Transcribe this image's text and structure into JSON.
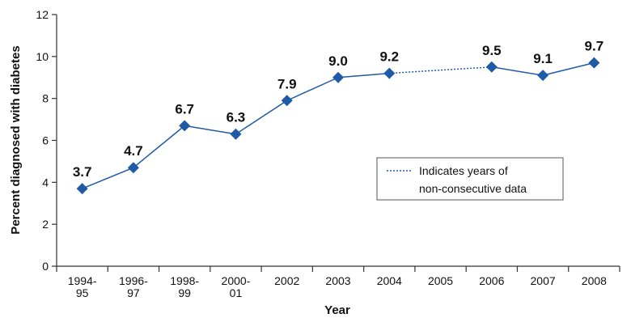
{
  "chart_data": {
    "type": "line",
    "categories": [
      [
        "1994-",
        "95"
      ],
      [
        "1996-",
        "97"
      ],
      [
        "1998-",
        "99"
      ],
      [
        "2000-",
        "01"
      ],
      [
        "2002"
      ],
      [
        "2003"
      ],
      [
        "2004"
      ],
      [
        "2005"
      ],
      [
        "2006"
      ],
      [
        "2007"
      ],
      [
        "2008"
      ]
    ],
    "values": [
      3.7,
      4.7,
      6.7,
      6.3,
      7.9,
      9.0,
      9.2,
      null,
      9.5,
      9.1,
      9.7
    ],
    "value_labels": [
      "3.7",
      "4.7",
      "6.7",
      "6.3",
      "7.9",
      "9.0",
      "9.2",
      "",
      "9.5",
      "9.1",
      "9.7"
    ],
    "dotted_segment": [
      6,
      8
    ],
    "xlabel": "Year",
    "ylabel": "Percent diagnosed with diabetes",
    "ylim": [
      0,
      12
    ],
    "yticks": [
      0,
      2,
      4,
      6,
      8,
      10,
      12
    ],
    "grid": false,
    "legend": {
      "text_line1": "Indicates years of",
      "text_line2": "non-consecutive data",
      "placement": "center-right"
    },
    "colors": {
      "line": "#1f5aa6",
      "marker": "#1f5aa6",
      "axis": "#333333"
    }
  }
}
